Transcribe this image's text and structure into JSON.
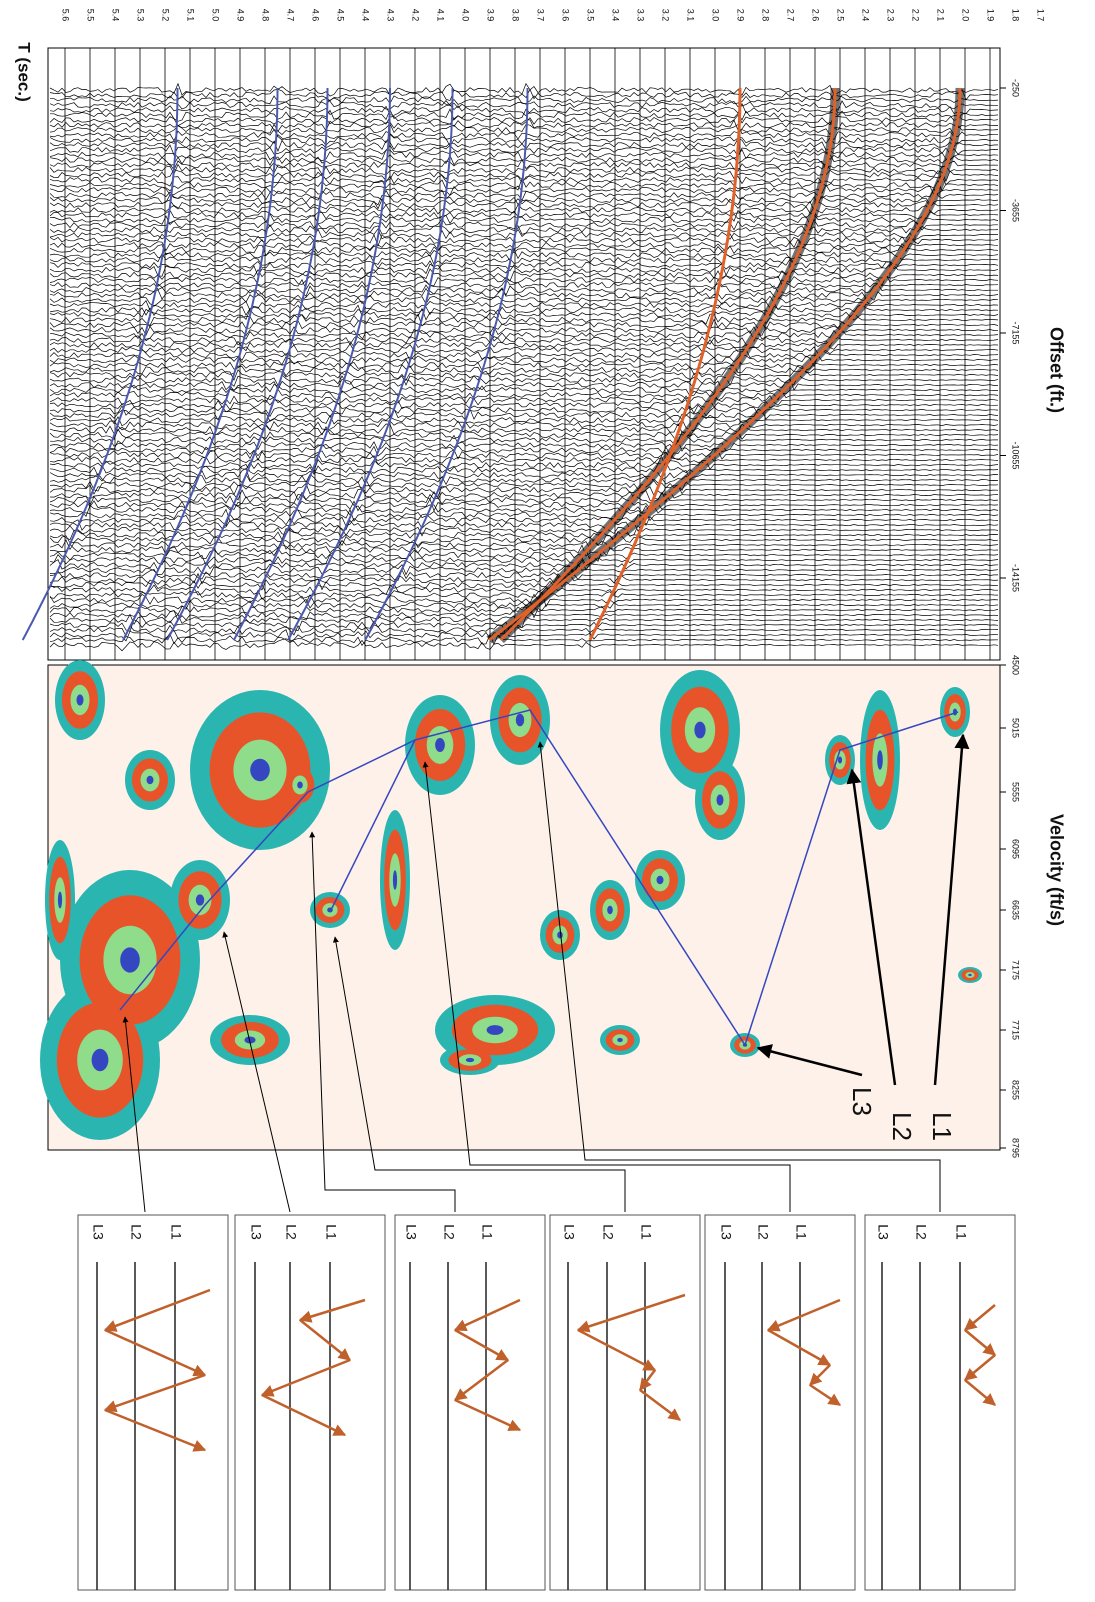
{
  "figure": {
    "axis_titles": {
      "time": "T (sec.)",
      "offset": "Offset (ft.)",
      "velocity": "Velocity (ft/s)"
    },
    "time_ticks": [
      "1.7",
      "1.8",
      "1.9",
      "2.0",
      "2.1",
      "2.2",
      "2.3",
      "2.4",
      "2.5",
      "2.6",
      "2.7",
      "2.8",
      "2.9",
      "3.0",
      "3.1",
      "3.2",
      "3.3",
      "3.4",
      "3.5",
      "3.6",
      "3.7",
      "3.8",
      "3.9",
      "4.0",
      "4.1",
      "4.2",
      "4.3",
      "4.4",
      "4.5",
      "4.6",
      "4.7",
      "4.8",
      "4.9",
      "5.0",
      "5.1",
      "5.2",
      "5.3",
      "5.4",
      "5.5",
      "5.6"
    ],
    "offset_ticks": [
      "-250",
      "-3655",
      "-7155",
      "-10655",
      "-14155"
    ],
    "velocity_ticks": [
      "4500",
      "5015",
      "5555",
      "6095",
      "6635",
      "7175",
      "7715",
      "8255",
      "8795"
    ],
    "layer_labels": [
      "L1",
      "L2",
      "L3"
    ],
    "ray_panels": [
      {
        "labels": [
          "L1",
          "L2",
          "L3"
        ]
      },
      {
        "labels": [
          "L1",
          "L2",
          "L3"
        ]
      },
      {
        "labels": [
          "L1",
          "L2",
          "L3"
        ]
      },
      {
        "labels": [
          "L1",
          "L2",
          "L3"
        ]
      },
      {
        "labels": [
          "L1",
          "L2",
          "L3"
        ]
      },
      {
        "labels": [
          "L1",
          "L2",
          "L3"
        ]
      }
    ]
  }
}
